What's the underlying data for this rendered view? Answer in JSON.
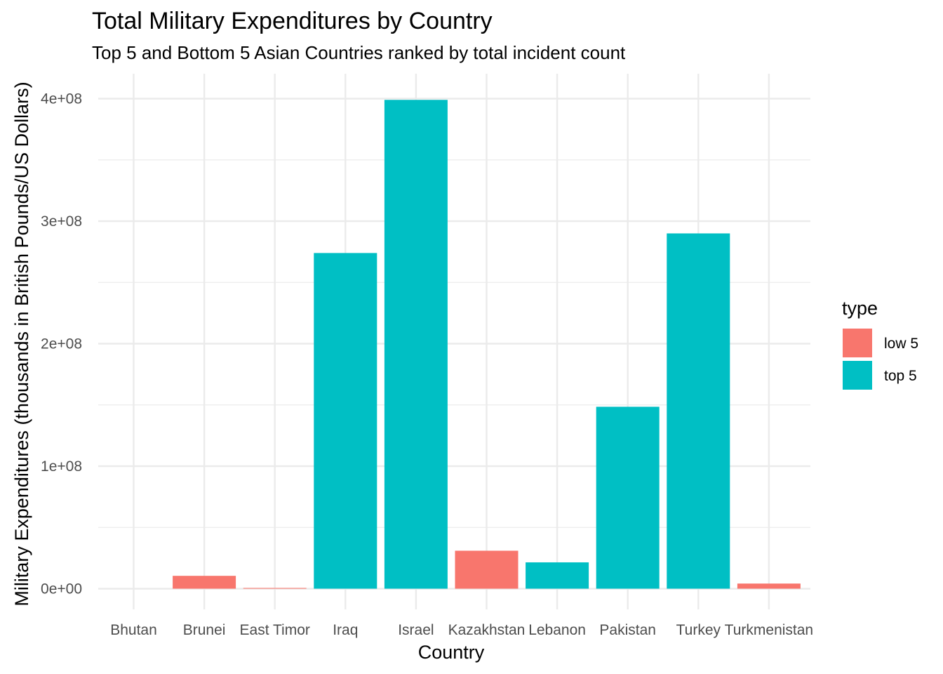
{
  "chart_data": {
    "type": "bar",
    "title": "Total Military Expenditures by Country",
    "subtitle": "Top 5 and Bottom 5 Asian Countries ranked by total incident count",
    "xlabel": "Country",
    "ylabel": "Military Expenditures (thousands in British Pounds/US Dollars)",
    "categories": [
      "Bhutan",
      "Brunei",
      "East Timor",
      "Iraq",
      "Israel",
      "Kazakhstan",
      "Lebanon",
      "Pakistan",
      "Turkey",
      "Turkmenistan"
    ],
    "values": [
      0,
      10500000,
      600000,
      274000000,
      399000000,
      31000000,
      21500000,
      148500000,
      290000000,
      4200000
    ],
    "groups": [
      "low 5",
      "low 5",
      "low 5",
      "top 5",
      "top 5",
      "low 5",
      "top 5",
      "top 5",
      "top 5",
      "low 5"
    ],
    "ylim": [
      0,
      420000000
    ],
    "yticks": [
      0,
      100000000,
      200000000,
      300000000,
      400000000
    ],
    "ytick_labels": [
      "0e+00",
      "1e+08",
      "2e+08",
      "3e+08",
      "4e+08"
    ],
    "grid": true,
    "legend": {
      "title": "type",
      "placement": "right",
      "entries": [
        {
          "label": "low 5",
          "color": "#F8766D"
        },
        {
          "label": "top 5",
          "color": "#00BFC4"
        }
      ]
    }
  }
}
